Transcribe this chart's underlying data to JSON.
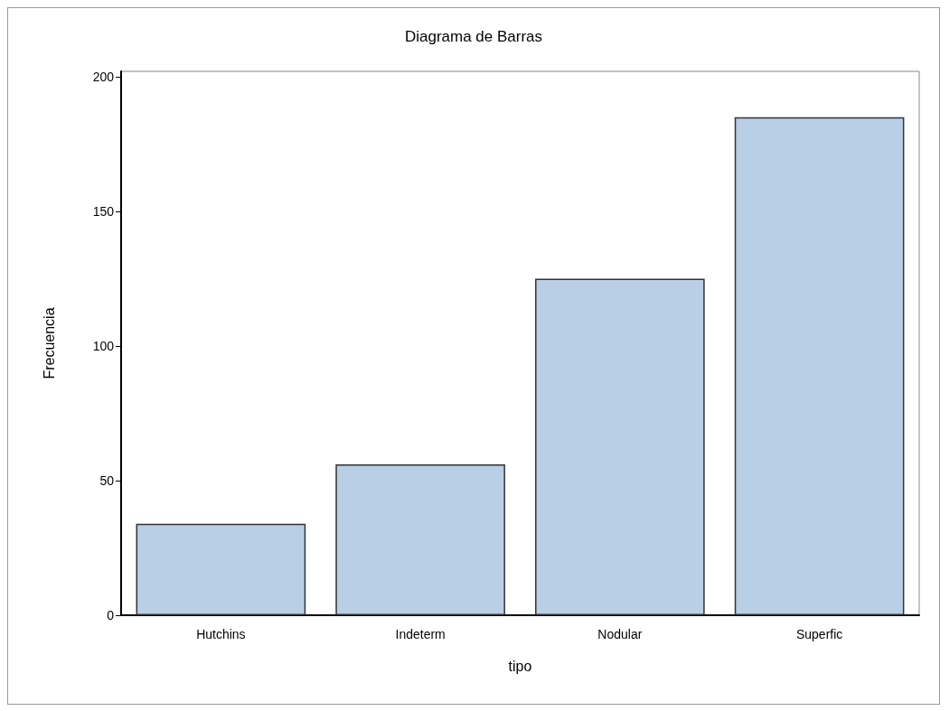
{
  "chart_data": {
    "type": "bar",
    "title": "Diagrama de Barras",
    "xlabel": "tipo",
    "ylabel": "Frecuencia",
    "categories": [
      "Hutchins",
      "Indeterm",
      "Nodular",
      "Superfic"
    ],
    "values": [
      34,
      56,
      125,
      185
    ],
    "color": "#b9cfe6",
    "ylim": [
      0,
      202
    ],
    "yticks": [
      0,
      50,
      100,
      150,
      200
    ],
    "grid": false
  }
}
